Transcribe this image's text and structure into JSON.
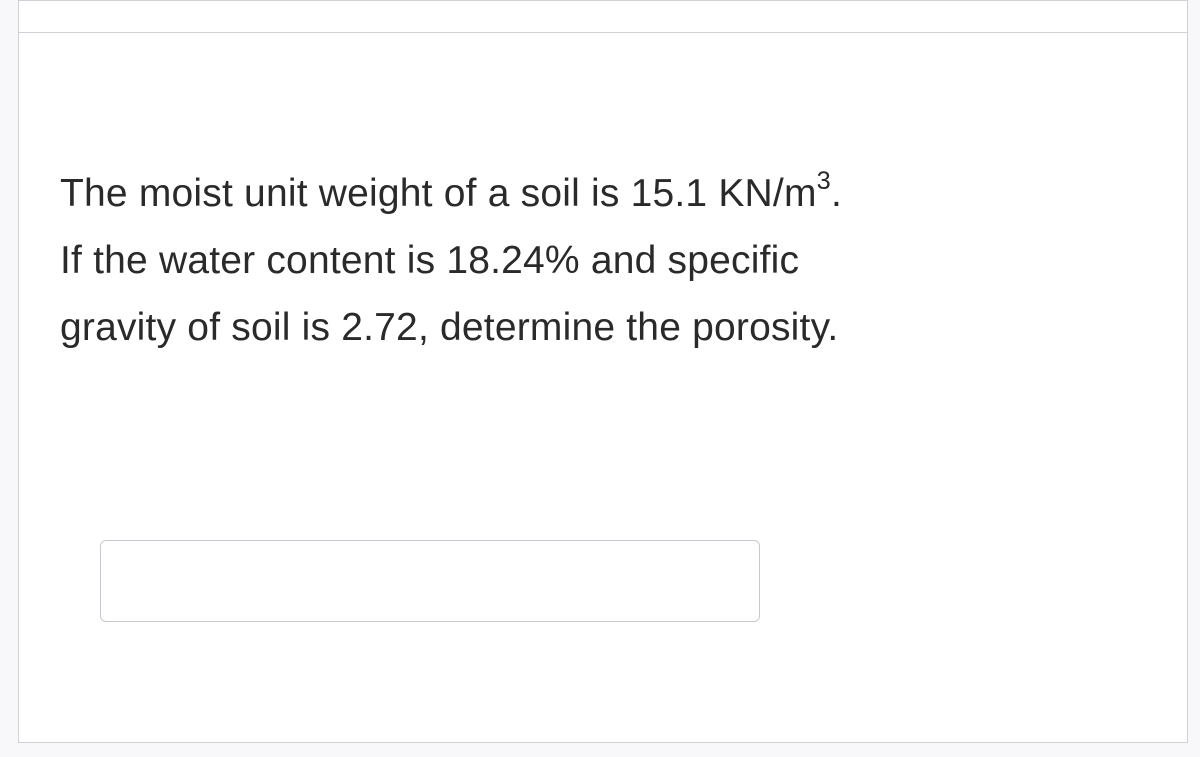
{
  "question": {
    "line1_part1": "The moist unit weight of a soil is ",
    "value_unit_weight": "15.1",
    "unit_prefix": " KN/m",
    "unit_exponent": "3",
    "line1_part2": ".",
    "line2_part1": "If the water content is ",
    "value_water_content": "18.24%",
    "line2_part2": "  and specific",
    "line3_part1": "gravity of soil is ",
    "value_specific_gravity": "2.72",
    "line3_part2": ", determine the porosity."
  },
  "answer": {
    "value": "",
    "placeholder": ""
  },
  "styling": {
    "background_color": "#ffffff",
    "border_color": "#d0d0d5",
    "text_color": "#2a2a2a",
    "input_border_color": "#c8c8d0",
    "font_size_pt": 39,
    "font_weight": 300,
    "line_height": 1.72
  }
}
